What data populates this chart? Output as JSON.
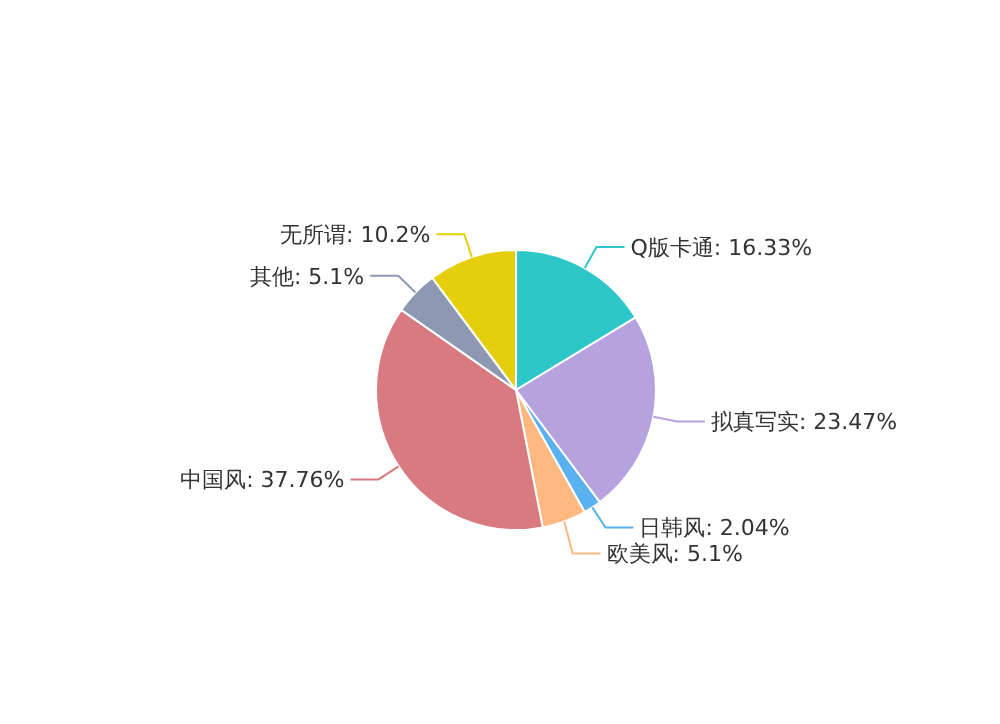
{
  "chart_data": {
    "type": "pie",
    "categories": [
      "Q版卡通",
      "拟真写实",
      "日韩风",
      "欧美风",
      "中国风",
      "其他",
      "无所谓"
    ],
    "values": [
      16.33,
      23.47,
      2.04,
      5.1,
      37.76,
      5.1,
      10.2
    ],
    "value_labels": [
      "16.33%",
      "23.47%",
      "2.04%",
      "5.1%",
      "37.76%",
      "5.1%",
      "10.2%"
    ],
    "colors": [
      "#2ec7c9",
      "#b6a2de",
      "#5ab1ef",
      "#ffb980",
      "#d87a80",
      "#8d98b3",
      "#e5cf0d"
    ]
  }
}
